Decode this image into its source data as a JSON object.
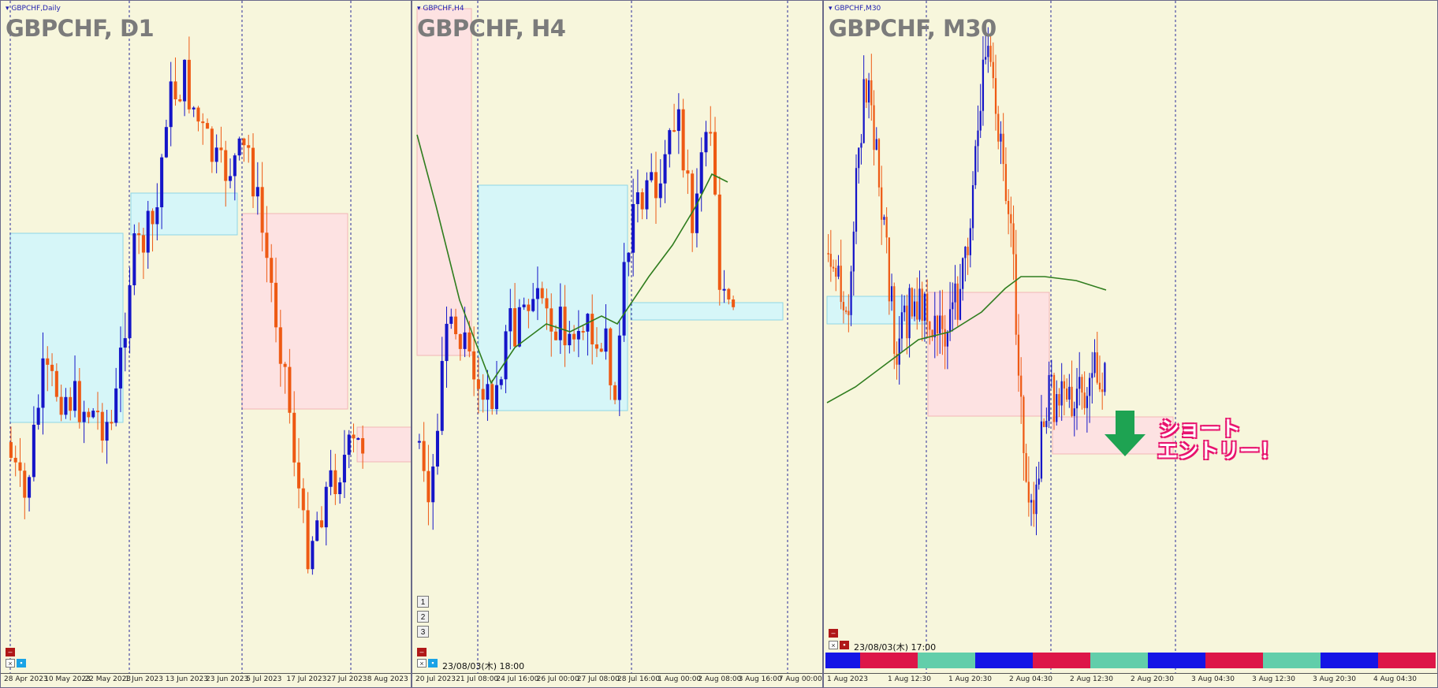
{
  "colors": {
    "bg": "#f7f6dc",
    "bull": "#1515c8",
    "bear": "#ee5a14",
    "ma": "#2f7d1e",
    "zone_demand": "#d6f6f8",
    "zone_supply": "#fde2e2",
    "grid": "#2a2a9a",
    "strip": [
      "#1515e6",
      "#dd1648",
      "#62ceaa"
    ]
  },
  "panes": [
    {
      "tab": "GBPCHF,Daily",
      "title": "GBPCHF, D1",
      "x_labels": [
        "28 Apr 2023",
        "10 May 2023",
        "22 May 2023",
        "1 Jun 2023",
        "13 Jun 2023",
        "23 Jun 2023",
        "5 Jul 2023",
        "17 Jul 2023",
        "27 Jul 2023",
        "8 Aug 2023"
      ]
    },
    {
      "tab": "GBPCHF,H4",
      "title": "GBPCHF, H4",
      "timestamp": "23/08/03(木) 18:00",
      "buttons": [
        "1",
        "2",
        "3"
      ],
      "x_labels": [
        "20 Jul 2023",
        "21 Jul 08:00",
        "24 Jul 16:00",
        "26 Jul 00:00",
        "27 Jul 08:00",
        "28 Jul 16:00",
        "1 Aug 00:00",
        "2 Aug 08:00",
        "3 Aug 16:00",
        "7 Aug 00:00"
      ]
    },
    {
      "tab": "GBPCHF,M30",
      "title": "GBPCHF, M30",
      "timestamp": "23/08/03(木) 17:00",
      "x_labels": [
        "1 Aug 2023",
        "1 Aug 12:30",
        "1 Aug 20:30",
        "2 Aug 04:30",
        "2 Aug 12:30",
        "2 Aug 20:30",
        "3 Aug 04:30",
        "3 Aug 12:30",
        "3 Aug 20:30",
        "4 Aug 04:30"
      ],
      "annotation": [
        "ショート",
        "エントリー！"
      ]
    }
  ],
  "chart_data": [
    {
      "type": "candlestick",
      "title": "GBPCHF, D1",
      "series": [
        {
          "name": "GBPCHF"
        }
      ]
    },
    {
      "type": "candlestick",
      "title": "GBPCHF, H4",
      "series": [
        {
          "name": "GBPCHF"
        }
      ]
    },
    {
      "type": "candlestick",
      "title": "GBPCHF, M30",
      "series": [
        {
          "name": "GBPCHF"
        }
      ]
    }
  ]
}
